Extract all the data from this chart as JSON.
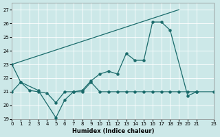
{
  "xlabel": "Humidex (Indice chaleur)",
  "xlim": [
    0,
    23
  ],
  "ylim": [
    19,
    27.5
  ],
  "yticks": [
    19,
    20,
    21,
    22,
    23,
    24,
    25,
    26,
    27
  ],
  "xticks": [
    0,
    1,
    2,
    3,
    4,
    5,
    6,
    7,
    8,
    9,
    10,
    11,
    12,
    13,
    14,
    15,
    16,
    17,
    18,
    19,
    20,
    21,
    23
  ],
  "bg_color": "#cce8e8",
  "line_color": "#1a6b6b",
  "line1_x": [
    0,
    19
  ],
  "line1_y": [
    23,
    27
  ],
  "line2_x": [
    0,
    1,
    3,
    5,
    6,
    7,
    8,
    9,
    10,
    11,
    12,
    13,
    14,
    15,
    16,
    17,
    18,
    20,
    21
  ],
  "line2_y": [
    23,
    21.7,
    21.1,
    19.1,
    20.4,
    21.0,
    21.1,
    21.8,
    22.3,
    22.5,
    22.3,
    23.8,
    23.3,
    23.3,
    26.1,
    26.1,
    25.5,
    20.7,
    21.0
  ],
  "line3_x": [
    0,
    1,
    2,
    3,
    4,
    5,
    6,
    7,
    8,
    9,
    10,
    11,
    12,
    13,
    14,
    15,
    16,
    17,
    18,
    19,
    20,
    21,
    23
  ],
  "line3_y": [
    21.0,
    21.7,
    21.1,
    21.0,
    20.9,
    20.2,
    21.0,
    21.0,
    21.0,
    21.7,
    21.0,
    21.0,
    21.0,
    21.0,
    21.0,
    21.0,
    21.0,
    21.0,
    21.0,
    21.0,
    21.0,
    21.0,
    21.0
  ]
}
